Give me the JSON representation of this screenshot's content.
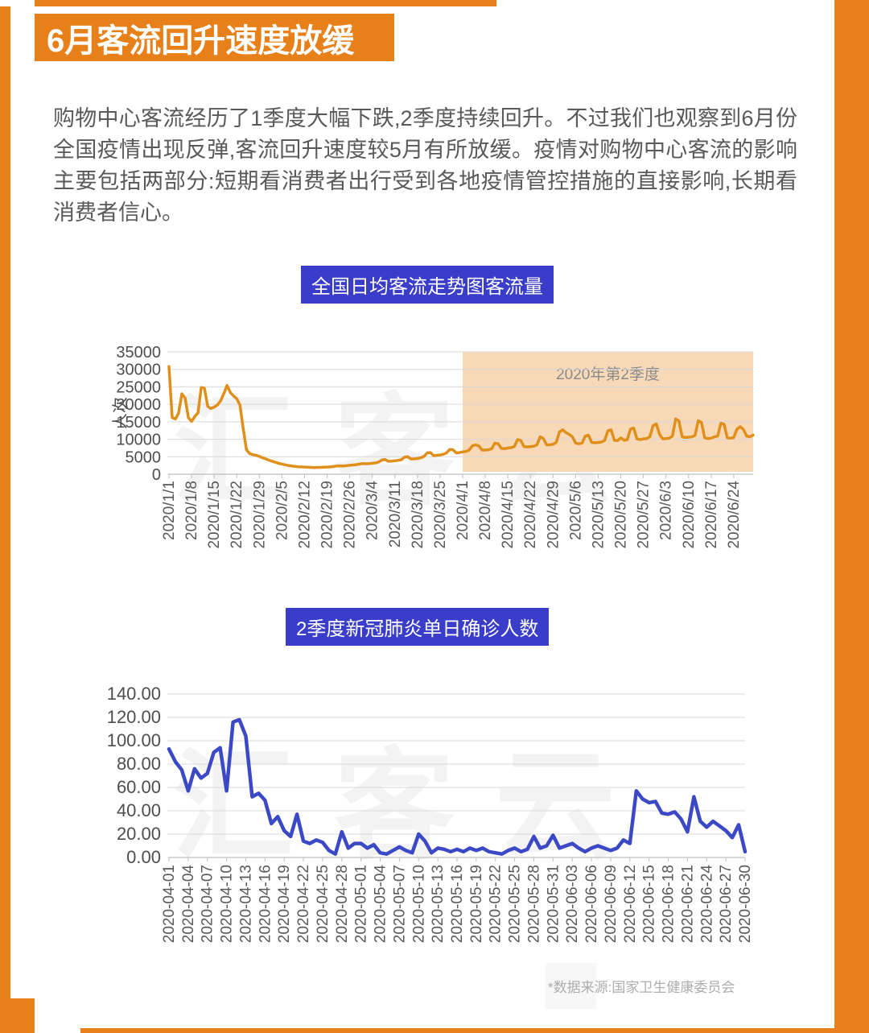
{
  "page": {
    "banner_title": "6月客流回升速度放缓",
    "paragraph": "购物中心客流经历了1季度大幅下跌,2季度持续回升。不过我们也观察到6月份全国疫情出现反弹,客流回升速度较5月有所放缓。疫情对购物中心客流的影响主要包括两部分:短期看消费者出行受到各地疫情管控措施的直接影响,长期看消费者信心。",
    "footnote": "*数据来源:国家卫生健康委员会",
    "watermark": "汇客云"
  },
  "colors": {
    "frame_orange": "#E8801A",
    "chip_blue": "#3A3DC9",
    "flow_line": "#E0901A",
    "highlight_band": "#F7D9B8",
    "covid_line": "#3C49C6",
    "body_text": "#58595B",
    "axis_text": "#4E4E4E",
    "tick_text": "#595959",
    "grid_line": "#D9D9D9"
  },
  "chart_data": [
    {
      "type": "line",
      "title": "全国日均客流走势图客流量",
      "ylabel": "人次",
      "xlabel": "",
      "ylim": [
        0,
        35000
      ],
      "yticks": [
        0,
        5000,
        10000,
        15000,
        20000,
        25000,
        30000,
        35000
      ],
      "ytick_labels": [
        "0",
        "5000",
        "10000",
        "15000",
        "20000",
        "25000",
        "30000",
        "35000"
      ],
      "grid": true,
      "legend": null,
      "x_start": "2020/1/1",
      "x_end": "2020/6/30",
      "x_tick_step_days": 7,
      "x_tick_labels": [
        "2020/1/1",
        "2020/1/8",
        "2020/1/15",
        "2020/1/22",
        "2020/1/29",
        "2020/2/5",
        "2020/2/12",
        "2020/2/19",
        "2020/2/26",
        "2020/3/4",
        "2020/3/11",
        "2020/3/18",
        "2020/3/25",
        "2020/4/1",
        "2020/4/8",
        "2020/4/15",
        "2020/4/22",
        "2020/4/29",
        "2020/5/6",
        "2020/5/13",
        "2020/5/20",
        "2020/5/27",
        "2020/6/3",
        "2020/6/10",
        "2020/6/17",
        "2020/6/24"
      ],
      "highlight": {
        "label": "2020年第2季度",
        "start_index": 91
      },
      "line_color": "#E0901A",
      "values": [
        30800,
        16200,
        15800,
        17500,
        23000,
        21800,
        16200,
        15100,
        16500,
        17600,
        24800,
        24600,
        19400,
        18800,
        19200,
        19800,
        21000,
        23100,
        25400,
        23400,
        22400,
        21600,
        19800,
        13000,
        7000,
        5900,
        5600,
        5400,
        5100,
        4700,
        4400,
        4000,
        3700,
        3400,
        3100,
        2900,
        2700,
        2500,
        2350,
        2250,
        2150,
        2100,
        2050,
        2000,
        1950,
        1900,
        1950,
        1950,
        2000,
        2050,
        2100,
        2200,
        2350,
        2400,
        2350,
        2450,
        2550,
        2650,
        2750,
        2900,
        3050,
        3000,
        3050,
        3150,
        3250,
        3500,
        4100,
        4200,
        3700,
        3750,
        3850,
        3950,
        4150,
        4900,
        5000,
        4350,
        4400,
        4500,
        4700,
        5100,
        6100,
        6200,
        5300,
        5400,
        5500,
        5700,
        6100,
        7100,
        7000,
        6100,
        6200,
        6400,
        6500,
        6900,
        8100,
        8400,
        8100,
        6900,
        6900,
        7000,
        7300,
        8900,
        8700,
        7400,
        7300,
        7500,
        7600,
        7900,
        9900,
        9700,
        7900,
        7800,
        7900,
        8000,
        8400,
        10700,
        10200,
        8400,
        8400,
        8600,
        9100,
        12100,
        12700,
        11900,
        11400,
        10700,
        8900,
        8700,
        8900,
        10900,
        11200,
        9100,
        9000,
        9100,
        9200,
        9700,
        12400,
        12700,
        9700,
        9600,
        10400,
        9700,
        9900,
        12900,
        13200,
        10100,
        9900,
        10100,
        10200,
        10700,
        13900,
        14400,
        11400,
        10100,
        10200,
        10300,
        10900,
        15800,
        15300,
        10700,
        10500,
        10600,
        10700,
        11100,
        15300,
        14800,
        10400,
        10200,
        10300,
        10700,
        10900,
        14600,
        14300,
        10400,
        10300,
        10500,
        12900,
        13600,
        12800,
        10900,
        10700,
        11200
      ]
    },
    {
      "type": "line",
      "title": "2季度新冠肺炎单日确诊人数",
      "ylabel": "",
      "xlabel": "",
      "ylim": [
        0,
        140
      ],
      "yticks": [
        0,
        20,
        40,
        60,
        80,
        100,
        120,
        140
      ],
      "ytick_labels": [
        "0.00",
        "20.00",
        "40.00",
        "60.00",
        "80.00",
        "100.00",
        "120.00",
        "140.00"
      ],
      "grid": true,
      "legend": null,
      "x_start": "2020-04-01",
      "x_end": "2020-06-30",
      "x_tick_step_days": 3,
      "x_tick_labels": [
        "2020-04-01",
        "2020-04-04",
        "2020-04-07",
        "2020-04-10",
        "2020-04-13",
        "2020-04-16",
        "2020-04-19",
        "2020-04-22",
        "2020-04-25",
        "2020-04-28",
        "2020-05-01",
        "2020-05-04",
        "2020-05-07",
        "2020-05-10",
        "2020-05-13",
        "2020-05-16",
        "2020-05-19",
        "2020-05-22",
        "2020-05-25",
        "2020-05-28",
        "2020-05-31",
        "2020-06-03",
        "2020-06-06",
        "2020-06-09",
        "2020-06-12",
        "2020-06-15",
        "2020-06-18",
        "2020-06-21",
        "2020-06-24",
        "2020-06-27",
        "2020-06-30"
      ],
      "highlight": null,
      "line_color": "#3C49C6",
      "values": [
        93,
        82,
        75,
        57,
        76,
        68,
        72,
        90,
        94,
        57,
        116,
        118,
        104,
        52,
        55,
        49,
        29,
        35,
        23,
        18,
        37,
        14,
        12,
        15,
        13,
        6,
        3,
        22,
        8,
        12,
        12,
        8,
        11,
        4,
        3,
        6,
        9,
        6,
        4,
        20,
        14,
        4,
        8,
        7,
        5,
        7,
        5,
        8,
        6,
        8,
        5,
        4,
        3,
        6,
        8,
        5,
        7,
        18,
        8,
        10,
        19,
        8,
        10,
        12,
        8,
        5,
        8,
        10,
        8,
        6,
        8,
        15,
        12,
        57,
        50,
        47,
        48,
        38,
        37,
        39,
        33,
        22,
        52,
        31,
        26,
        31,
        27,
        23,
        17,
        28,
        5
      ]
    }
  ]
}
